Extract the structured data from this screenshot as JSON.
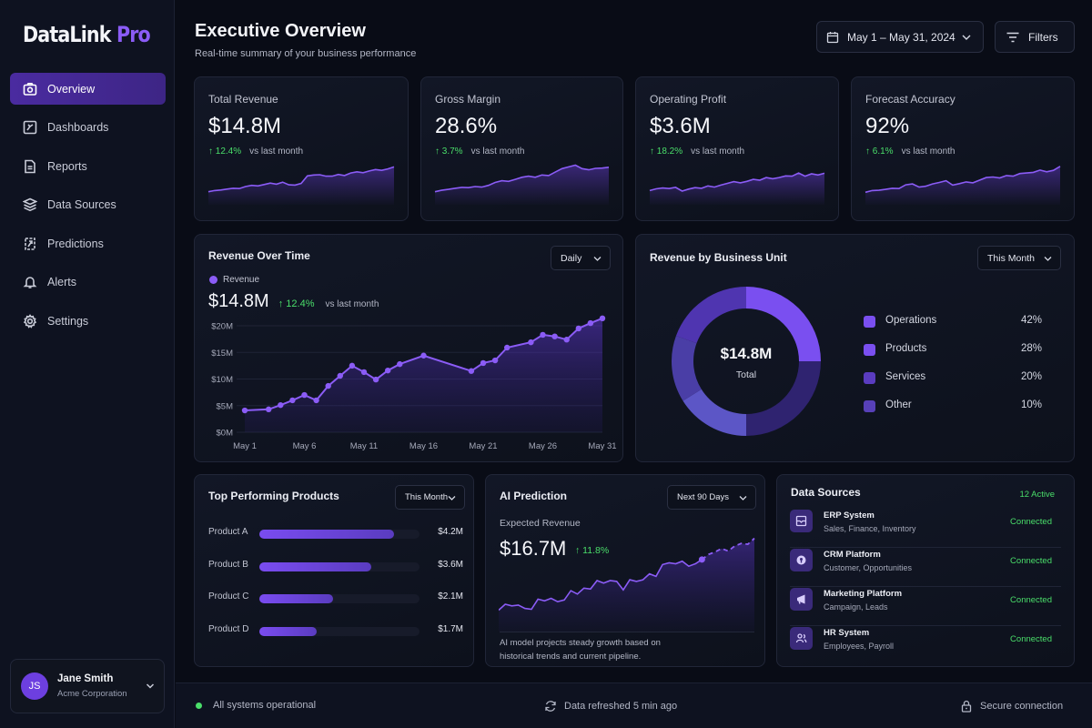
{
  "app": {
    "name": "DataLink",
    "name_accent": "Pro"
  },
  "sidebar": {
    "items": [
      {
        "label": "Overview",
        "icon": "camera-icon",
        "active": true
      },
      {
        "label": "Dashboards",
        "icon": "dashboard-icon",
        "active": false
      },
      {
        "label": "Reports",
        "icon": "document-icon",
        "active": false
      },
      {
        "label": "Data Sources",
        "icon": "layers-icon",
        "active": false
      },
      {
        "label": "Predictions",
        "icon": "prediction-icon",
        "active": false
      },
      {
        "label": "Alerts",
        "icon": "bell-icon",
        "active": false
      },
      {
        "label": "Settings",
        "icon": "gear-icon",
        "active": false
      }
    ],
    "user": {
      "initials": "JS",
      "name": "Jane Smith",
      "org": "Acme Corporation"
    }
  },
  "header": {
    "title": "Executive Overview",
    "subtitle": "Real-time summary of your business performance",
    "date_range": "May 1 – May 31, 2024",
    "filters_label": "Filters"
  },
  "kpis": [
    {
      "label": "Total Revenue",
      "value": "$14.8M",
      "delta": "12.4%",
      "delta_suffix": "vs last month",
      "spark": [
        2,
        2.4,
        2.6,
        2.9,
        3.2,
        3.1,
        3.8,
        4.2,
        4.0,
        4.5,
        5.0,
        4.6,
        5.3,
        4.4,
        4.3,
        4.9,
        7.5,
        7.8,
        7.9,
        7.4,
        7.4,
        8.0,
        7.6,
        8.5,
        8.9,
        8.6,
        9.2,
        9.7,
        9.4,
        9.9,
        10.6
      ]
    },
    {
      "label": "Gross Margin",
      "value": "28.6%",
      "delta": "3.7%",
      "delta_suffix": "vs last month",
      "spark": [
        2,
        2.5,
        2.8,
        3.2,
        3.5,
        3.4,
        3.8,
        3.6,
        4.2,
        5.2,
        5.8,
        5.6,
        6.3,
        7.0,
        7.4,
        7.0,
        7.8,
        7.6,
        8.8,
        10.0,
        10.6,
        11.2,
        10.0,
        9.6,
        10.1,
        10.2,
        10.5
      ]
    },
    {
      "label": "Operating Profit",
      "value": "$3.6M",
      "delta": "18.2%",
      "delta_suffix": "vs last month",
      "spark": [
        2.4,
        3.0,
        3.3,
        3.1,
        3.5,
        2.2,
        2.9,
        3.4,
        3.2,
        4.0,
        3.6,
        4.3,
        4.9,
        5.5,
        5.1,
        5.6,
        6.3,
        6.0,
        6.9,
        6.5,
        6.9,
        7.5,
        7.4,
        8.5,
        7.4,
        8.2,
        7.8,
        8.4
      ]
    },
    {
      "label": "Forecast Accuracy",
      "value": "92%",
      "delta": "6.1%",
      "delta_suffix": "vs last month",
      "spark": [
        1.8,
        2.4,
        2.5,
        2.8,
        3.2,
        3.1,
        4.4,
        4.7,
        3.6,
        3.9,
        4.7,
        5.2,
        5.8,
        4.3,
        4.8,
        5.4,
        5.1,
        6.0,
        6.9,
        7.1,
        6.8,
        7.6,
        7.4,
        8.3,
        8.5,
        8.7,
        9.5,
        8.9,
        9.4,
        10.8
      ]
    }
  ],
  "revenue_over_time": {
    "title": "Revenue Over Time",
    "granularity": "Daily",
    "legend": "Revenue",
    "value": "$14.8M",
    "delta": "12.4%",
    "delta_suffix": "vs last month"
  },
  "business_unit": {
    "title": "Revenue by Business Unit",
    "period": "This Month",
    "center_value": "$14.8M",
    "center_label": "Total",
    "units": [
      {
        "name": "Operations",
        "pct": "42%",
        "color": "#7a4ff0"
      },
      {
        "name": "Products",
        "pct": "28%",
        "color": "#7a4ff0"
      },
      {
        "name": "Services",
        "pct": "20%",
        "color": "#5a3cc0"
      },
      {
        "name": "Other",
        "pct": "10%",
        "color": "#5740b8"
      }
    ]
  },
  "top_products": {
    "title": "Top Performing Products",
    "period": "This Month",
    "items": [
      {
        "name": "Product A",
        "value": "$4.2M",
        "share": 0.84
      },
      {
        "name": "Product B",
        "value": "$3.6M",
        "share": 0.7
      },
      {
        "name": "Product C",
        "value": "$2.1M",
        "share": 0.46
      },
      {
        "name": "Product D",
        "value": "$1.7M",
        "share": 0.36
      }
    ]
  },
  "ai_prediction": {
    "title": "AI Prediction",
    "period": "Next 90 Days",
    "label": "Expected Revenue",
    "value": "$16.7M",
    "delta": "11.8%",
    "note": "AI model projects steady growth based on historical trends and current pipeline.",
    "history": [
      2,
      2.7,
      2.5,
      2.6,
      2.2,
      2.1,
      3.3,
      3.1,
      3.4,
      3.0,
      3.2,
      4.3,
      3.9,
      4.6,
      4.5,
      5.5,
      5.2,
      5.5,
      5.4,
      4.4,
      5.6,
      5.4,
      5.6,
      6.3,
      6.0,
      7.4,
      7.6,
      7.5,
      7.8,
      7.2,
      7.5,
      8.0
    ],
    "forecast": [
      8.0,
      8.6,
      8.9,
      9.3,
      9.0,
      9.6,
      9.9,
      9.8,
      10.5
    ]
  },
  "data_sources": {
    "title": "Data Sources",
    "active": "12 Active",
    "items": [
      {
        "name": "ERP System",
        "desc": "Sales, Finance, Inventory",
        "status": "Connected",
        "icon": "erp-icon"
      },
      {
        "name": "CRM Platform",
        "desc": "Customer, Opportunities",
        "status": "Connected",
        "icon": "crm-icon"
      },
      {
        "name": "Marketing Platform",
        "desc": "Campaign, Leads",
        "status": "Connected",
        "icon": "megaphone-icon"
      },
      {
        "name": "HR System",
        "desc": "Employees, Payroll",
        "status": "Connected",
        "icon": "users-icon"
      }
    ]
  },
  "footer": {
    "status": "All systems operational",
    "refresh": "Data refreshed 5 min ago",
    "security": "Secure connection"
  },
  "chart_data": [
    {
      "type": "area",
      "title": "Revenue Over Time",
      "legend": [
        "Revenue"
      ],
      "xlabel": "",
      "ylabel": "",
      "x_ticks": [
        "May 1",
        "May 6",
        "May 11",
        "May 16",
        "May 21",
        "May 26",
        "May 31"
      ],
      "y_ticks": [
        "$0M",
        "$5M",
        "$10M",
        "$15M",
        "$20M"
      ],
      "ylim": [
        0,
        20
      ],
      "grid": true,
      "x": [
        1,
        3,
        4,
        5,
        6,
        7,
        8,
        9,
        10,
        11,
        12,
        13,
        14,
        16,
        20,
        21,
        22,
        23,
        25,
        26,
        27,
        28,
        29,
        30,
        31
      ],
      "series": [
        {
          "name": "Revenue",
          "values": [
            4.1,
            4.3,
            5.1,
            6.0,
            7.0,
            6.0,
            8.7,
            10.6,
            12.5,
            11.3,
            9.9,
            11.6,
            12.8,
            14.4,
            11.5,
            13.0,
            13.5,
            15.9,
            16.9,
            18.3,
            18.0,
            17.4,
            19.5,
            20.5,
            21.4
          ]
        }
      ]
    },
    {
      "type": "pie",
      "title": "Revenue by Business Unit",
      "categories": [
        "Operations",
        "Products",
        "Services",
        "Other"
      ],
      "values": [
        42,
        28,
        20,
        10
      ],
      "center_text": "$14.8M Total",
      "legend": "right"
    },
    {
      "type": "bar",
      "title": "Top Performing Products",
      "categories": [
        "Product A",
        "Product B",
        "Product C",
        "Product D"
      ],
      "values": [
        4.2,
        3.6,
        2.1,
        1.7
      ],
      "orientation": "horizontal"
    }
  ]
}
